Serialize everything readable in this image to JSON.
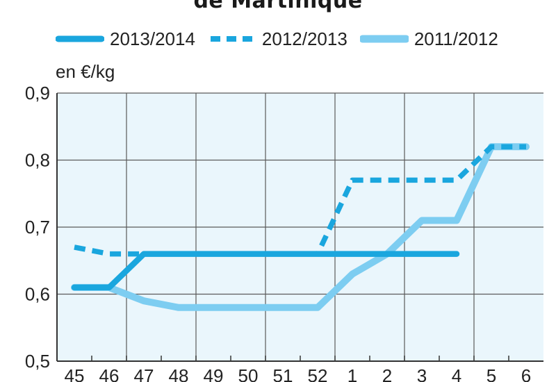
{
  "chart_data": {
    "type": "line",
    "title": "de Martinique",
    "ylabel": "en €/kg",
    "xlabel": "",
    "categories": [
      "45",
      "46",
      "47",
      "48",
      "49",
      "50",
      "51",
      "52",
      "1",
      "2",
      "3",
      "4",
      "5",
      "6"
    ],
    "ylim": [
      0.5,
      0.9
    ],
    "yticks": [
      "0,5",
      "0,6",
      "0,7",
      "0,8",
      "0,9"
    ],
    "grid": true,
    "legend_position": "top",
    "series": [
      {
        "name": "2013/2014",
        "style": "solid-thick",
        "color": "#1aa6de",
        "values": [
          0.61,
          0.61,
          0.66,
          0.66,
          0.66,
          0.66,
          0.66,
          0.66,
          0.66,
          0.66,
          0.66,
          0.66,
          null,
          null
        ]
      },
      {
        "name": "2012/2013",
        "style": "dashed",
        "color": "#1aa6de",
        "values": [
          0.67,
          0.66,
          0.66,
          0.66,
          0.66,
          0.66,
          0.66,
          0.66,
          0.77,
          0.77,
          0.77,
          0.77,
          0.82,
          0.82
        ]
      },
      {
        "name": "2011/2012",
        "style": "solid-light",
        "color": "#7dcdf1",
        "values": [
          0.61,
          0.61,
          0.59,
          0.58,
          0.58,
          0.58,
          0.58,
          0.58,
          0.63,
          0.66,
          0.71,
          0.71,
          0.82,
          0.82
        ]
      }
    ]
  }
}
